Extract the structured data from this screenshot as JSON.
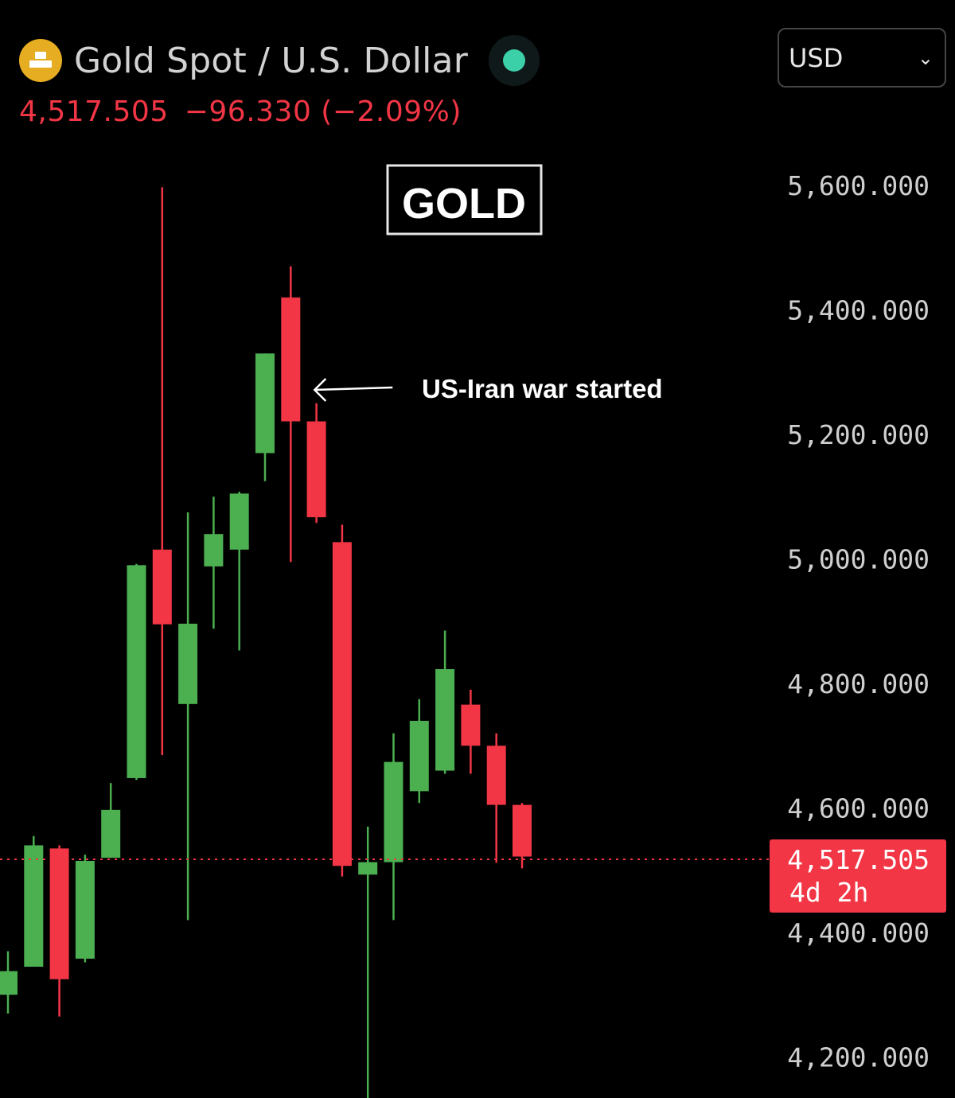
{
  "header": {
    "title": "Gold Spot / U.S. Dollar",
    "price": "4,517.505",
    "change": "−96.330 (−2.09%)",
    "icon": "gold-bars-icon",
    "live_icon": "live-status-dot-icon",
    "currency": "USD"
  },
  "colors": {
    "up": "#4caf50",
    "down": "#f23645",
    "accent_gold": "#e6ad22",
    "live": "#3cd0a8"
  },
  "chart_data": {
    "type": "candlestick",
    "title": "GOLD",
    "ylim": [
      4130,
      5690
    ],
    "y_ticks": [
      {
        "value": 5600,
        "label": "5,600.000"
      },
      {
        "value": 5400,
        "label": "5,400.000"
      },
      {
        "value": 5200,
        "label": "5,200.000"
      },
      {
        "value": 5000,
        "label": "5,000.000"
      },
      {
        "value": 4800,
        "label": "4,800.000"
      },
      {
        "value": 4600,
        "label": "4,600.000"
      },
      {
        "value": 4400,
        "label": "4,400.000"
      },
      {
        "value": 4200,
        "label": "4,200.000"
      }
    ],
    "current_price": {
      "value": 4517.505,
      "label": "4,517.505",
      "countdown": "4d 2h"
    },
    "annotation": {
      "text": "US-Iran war started",
      "candle_index": 11
    },
    "candles": [
      {
        "open": 4300,
        "close": 4338,
        "high": 4370,
        "low": 4270
      },
      {
        "open": 4345,
        "close": 4540,
        "high": 4555,
        "low": 4345
      },
      {
        "open": 4535,
        "close": 4325,
        "high": 4540,
        "low": 4265
      },
      {
        "open": 4358,
        "close": 4515,
        "high": 4525,
        "low": 4352
      },
      {
        "open": 4520,
        "close": 4597,
        "high": 4640,
        "low": 4520
      },
      {
        "open": 4648,
        "close": 4990,
        "high": 4992,
        "low": 4645
      },
      {
        "open": 5015,
        "close": 4895,
        "high": 5597,
        "low": 4685
      },
      {
        "open": 4767,
        "close": 4896,
        "high": 5075,
        "low": 4420
      },
      {
        "open": 4988,
        "close": 5040,
        "high": 5100,
        "low": 4888
      },
      {
        "open": 5015,
        "close": 5105,
        "high": 5108,
        "low": 4853
      },
      {
        "open": 5170,
        "close": 5330,
        "high": 5330,
        "low": 5125
      },
      {
        "open": 5420,
        "close": 5221,
        "high": 5470,
        "low": 4995
      },
      {
        "open": 5221,
        "close": 5067,
        "high": 5250,
        "low": 5058
      },
      {
        "open": 5027,
        "close": 4507,
        "high": 5055,
        "low": 4490
      },
      {
        "open": 4493,
        "close": 4513,
        "high": 4570,
        "low": 4130
      },
      {
        "open": 4513,
        "close": 4674,
        "high": 4720,
        "low": 4420
      },
      {
        "open": 4627,
        "close": 4740,
        "high": 4775,
        "low": 4608
      },
      {
        "open": 4660,
        "close": 4823,
        "high": 4885,
        "low": 4655
      },
      {
        "open": 4766,
        "close": 4700,
        "high": 4790,
        "low": 4655
      },
      {
        "open": 4700,
        "close": 4605,
        "high": 4720,
        "low": 4512
      },
      {
        "open": 4605,
        "close": 4522,
        "high": 4608,
        "low": 4503
      }
    ]
  }
}
